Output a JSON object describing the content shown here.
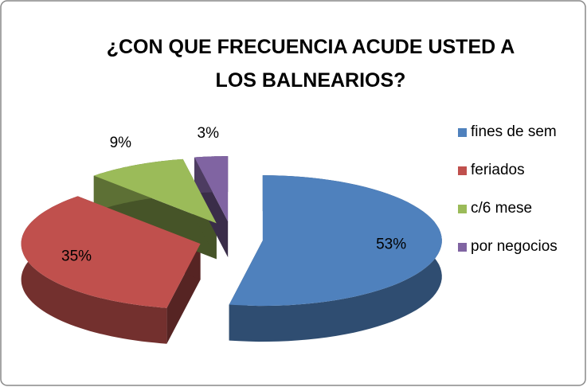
{
  "chart_data": {
    "type": "pie3d",
    "title": "¿CON QUE FRECUENCIA ACUDE USTED A LOS BALNEARIOS?",
    "categories": [
      "fines de sem",
      "feriados",
      "c/6 mese",
      "por negocios"
    ],
    "values": [
      53,
      35,
      9,
      3
    ],
    "value_labels": [
      "53%",
      "35%",
      "9%",
      "3%"
    ],
    "colors": [
      "#4f81bd",
      "#c0504d",
      "#9bbb59",
      "#8064a2"
    ],
    "legend": "right"
  }
}
